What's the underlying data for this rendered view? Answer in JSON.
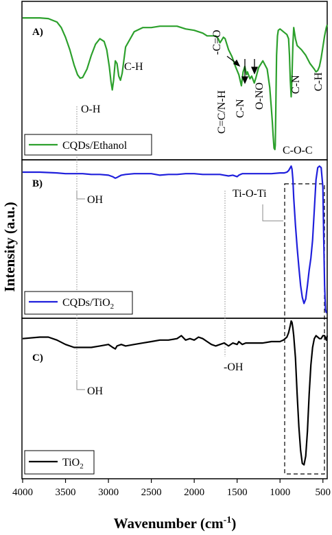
{
  "chart_data": {
    "type": "line",
    "xlabel_main": "Wavenumber (cm",
    "xlabel_sup": "-1",
    "xlabel_end": ")",
    "ylabel": "Intensity (a.u.)",
    "xlim": [
      4000,
      450
    ],
    "x_ticks": [
      "4000",
      "3500",
      "3000",
      "2500",
      "2000",
      "1500",
      "1000",
      "500"
    ],
    "panels": [
      {
        "id": "A",
        "label": "A)",
        "series": [
          {
            "name": "CQDs/Ethanol",
            "name_sub": "",
            "color": "#2ca02c",
            "x": [
              4000,
              3800,
              3700,
              3600,
              3550,
              3500,
              3450,
              3400,
              3360,
              3330,
              3300,
              3250,
              3200,
              3150,
              3100,
              3050,
              3020,
              2990,
              2970,
              2955,
              2940,
              2920,
              2900,
              2880,
              2860,
              2840,
              2800,
              2700,
              2600,
              2500,
              2400,
              2300,
              2200,
              2100,
              2000,
              1900,
              1850,
              1800,
              1750,
              1720,
              1700,
              1680,
              1660,
              1640,
              1620,
              1600,
              1560,
              1520,
              1480,
              1450,
              1430,
              1410,
              1390,
              1380,
              1350,
              1330,
              1300,
              1280,
              1250,
              1200,
              1150,
              1120,
              1100,
              1090,
              1080,
              1070,
              1060,
              1055,
              1050,
              1045,
              1040,
              1030,
              1020,
              1000,
              980,
              960,
              940,
              920,
              900,
              890,
              880,
              870,
              860,
              850,
              840,
              820,
              800,
              750,
              700,
              650,
              600,
              580,
              560,
              540,
              520,
              500,
              480,
              460,
              450
            ],
            "y": [
              0.97,
              0.97,
              0.965,
              0.94,
              0.9,
              0.83,
              0.74,
              0.63,
              0.56,
              0.535,
              0.54,
              0.6,
              0.7,
              0.78,
              0.82,
              0.8,
              0.74,
              0.62,
              0.51,
              0.45,
              0.52,
              0.66,
              0.64,
              0.55,
              0.52,
              0.57,
              0.76,
              0.87,
              0.9,
              0.9,
              0.91,
              0.91,
              0.91,
              0.89,
              0.88,
              0.86,
              0.84,
              0.84,
              0.84,
              0.82,
              0.79,
              0.81,
              0.83,
              0.82,
              0.78,
              0.74,
              0.69,
              0.62,
              0.56,
              0.48,
              0.58,
              0.62,
              0.56,
              0.58,
              0.53,
              0.55,
              0.5,
              0.54,
              0.61,
              0.66,
              0.6,
              0.47,
              0.31,
              0.22,
              0.12,
              0.03,
              0.02,
              0.05,
              0.28,
              0.5,
              0.7,
              0.84,
              0.88,
              0.89,
              0.88,
              0.87,
              0.86,
              0.85,
              0.82,
              0.7,
              0.52,
              0.4,
              0.55,
              0.78,
              0.9,
              0.82,
              0.77,
              0.74,
              0.7,
              0.64,
              0.6,
              0.58,
              0.59,
              0.62,
              0.68,
              0.76,
              0.84,
              0.9,
              0.92
            ],
            "ylim": [
              0,
              1
            ]
          }
        ],
        "annotations": {
          "oh": "O-H",
          "ch1": "C-H",
          "co": "-C=O",
          "ccnh": "C=C/N-H",
          "cn1": "C-N",
          "ono": "O-NO",
          "cn2": "C-N",
          "ch2": "C-H",
          "coc": "C-O-C"
        }
      },
      {
        "id": "B",
        "label": "B)",
        "series": [
          {
            "name": "CQDs/TiO",
            "name_sub": "2",
            "color": "#1f1fdc",
            "x": [
              4000,
              3800,
              3600,
              3500,
              3400,
              3300,
              3200,
              3100,
              3000,
              2950,
              2920,
              2900,
              2850,
              2800,
              2700,
              2600,
              2500,
              2400,
              2300,
              2200,
              2100,
              2000,
              1900,
              1800,
              1700,
              1650,
              1600,
              1550,
              1500,
              1480,
              1460,
              1440,
              1400,
              1300,
              1200,
              1100,
              1000,
              950,
              920,
              900,
              880,
              870,
              860,
              850,
              840,
              820,
              800,
              780,
              760,
              740,
              720,
              700,
              680,
              660,
              640,
              620,
              600,
              580,
              560,
              540,
              520,
              500,
              490,
              480,
              470,
              460,
              455
            ],
            "y": [
              0.95,
              0.95,
              0.945,
              0.94,
              0.94,
              0.94,
              0.935,
              0.935,
              0.93,
              0.92,
              0.91,
              0.915,
              0.93,
              0.935,
              0.94,
              0.94,
              0.94,
              0.93,
              0.935,
              0.935,
              0.94,
              0.94,
              0.935,
              0.935,
              0.935,
              0.93,
              0.925,
              0.93,
              0.92,
              0.93,
              0.935,
              0.94,
              0.94,
              0.94,
              0.94,
              0.94,
              0.945,
              0.945,
              0.95,
              0.96,
              0.98,
              0.99,
              0.97,
              0.9,
              0.78,
              0.6,
              0.45,
              0.32,
              0.2,
              0.12,
              0.08,
              0.11,
              0.2,
              0.3,
              0.38,
              0.5,
              0.7,
              0.9,
              0.98,
              0.99,
              0.98,
              0.85,
              0.5,
              0.2,
              0.04,
              0.02,
              0.02
            ],
            "ylim": [
              0,
              1
            ]
          }
        ],
        "annotations": {
          "oh": "OH",
          "tioti": "Ti-O-Ti"
        }
      },
      {
        "id": "C",
        "label": "C)",
        "series": [
          {
            "name": "TiO",
            "name_sub": "2",
            "color": "#000000",
            "x": [
              4000,
              3800,
              3700,
              3600,
              3500,
              3400,
              3300,
              3200,
              3100,
              3000,
              2950,
              2920,
              2900,
              2850,
              2800,
              2700,
              2600,
              2500,
              2400,
              2300,
              2200,
              2150,
              2100,
              2050,
              2000,
              1950,
              1900,
              1850,
              1800,
              1750,
              1700,
              1650,
              1600,
              1550,
              1500,
              1480,
              1460,
              1440,
              1400,
              1300,
              1200,
              1100,
              1000,
              960,
              940,
              920,
              900,
              880,
              870,
              860,
              850,
              840,
              820,
              800,
              780,
              760,
              740,
              720,
              700,
              680,
              660,
              640,
              620,
              600,
              580,
              560,
              540,
              520,
              500,
              480,
              460,
              450
            ],
            "y": [
              0.88,
              0.89,
              0.89,
              0.87,
              0.84,
              0.82,
              0.82,
              0.82,
              0.83,
              0.84,
              0.82,
              0.81,
              0.83,
              0.84,
              0.83,
              0.84,
              0.85,
              0.86,
              0.87,
              0.87,
              0.88,
              0.9,
              0.87,
              0.88,
              0.87,
              0.89,
              0.88,
              0.86,
              0.84,
              0.83,
              0.84,
              0.85,
              0.83,
              0.85,
              0.84,
              0.86,
              0.85,
              0.84,
              0.85,
              0.85,
              0.85,
              0.86,
              0.86,
              0.87,
              0.88,
              0.89,
              0.92,
              0.97,
              1.0,
              0.99,
              0.95,
              0.9,
              0.75,
              0.5,
              0.28,
              0.12,
              0.03,
              0.02,
              0.08,
              0.25,
              0.5,
              0.7,
              0.82,
              0.88,
              0.9,
              0.89,
              0.88,
              0.88,
              0.9,
              0.9,
              0.87,
              0.9
            ],
            "ylim": [
              0,
              1
            ]
          }
        ],
        "annotations": {
          "oh1": "OH",
          "oh2": "-OH"
        }
      }
    ]
  }
}
